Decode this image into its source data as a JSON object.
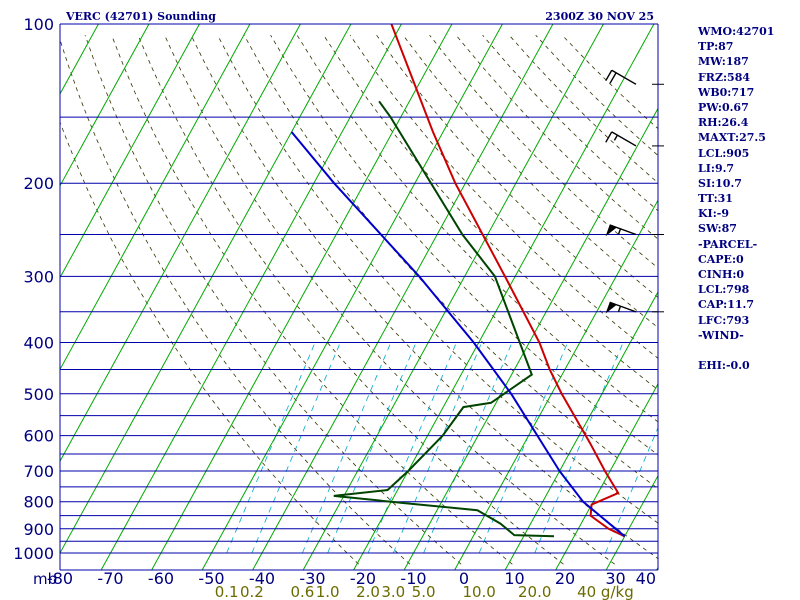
{
  "header": {
    "title": "VERC (42701) Sounding",
    "datetime": "2300Z 30 NOV 25"
  },
  "indices": [
    "WMO:42701",
    "TP:87",
    "MW:187",
    "FRZ:584",
    "WB0:717",
    "PW:0.67",
    "RH:26.4",
    "MAXT:27.5",
    "LCL:905",
    "LI:9.7",
    "SI:10.7",
    "TT:31",
    "KI:-9",
    "SW:87",
    "-PARCEL-",
    "CAPE:0",
    "CINH:0",
    "LCL:798",
    "CAP:11.7",
    "LFC:793",
    "-WIND-",
    "",
    "EHI:-0.0"
  ],
  "colors": {
    "isobar": "#0000aa",
    "isotherm": "#00aa00",
    "dry_adiabat": "#333300",
    "mixing_ratio": "#00aacc",
    "temperature": "#cc0000",
    "dewpoint": "#004400",
    "parcel": "#0000cc",
    "text": "#000080"
  },
  "chart_data": {
    "type": "line",
    "title": "VERC (42701) Sounding",
    "y_scale": "log-pressure",
    "ylim": [
      1000,
      100
    ],
    "xlim": [
      -80,
      40
    ],
    "grid": true,
    "pressure_unit_label": "mb",
    "pressure_ticks": [
      100,
      200,
      300,
      400,
      500,
      600,
      700,
      800,
      900,
      1000
    ],
    "isobar_levels": [
      100,
      150,
      200,
      250,
      300,
      350,
      400,
      450,
      500,
      550,
      600,
      650,
      700,
      750,
      800,
      850,
      900,
      950,
      1000
    ],
    "temperature_ticks": [
      "-80",
      "-70",
      "-60",
      "-50",
      "-40",
      "-30",
      "-20",
      "-10",
      "0",
      "10",
      "20",
      "30",
      "40"
    ],
    "mixing_ratio_ticks": [
      {
        "label": "0.1",
        "t": -47
      },
      {
        "label": "0.2",
        "t": -42
      },
      {
        "label": "0.6",
        "t": -32
      },
      {
        "label": "1.0",
        "t": -27
      },
      {
        "label": "2.0",
        "t": -19
      },
      {
        "label": "3.0",
        "t": -14
      },
      {
        "label": "5.0",
        "t": -8
      },
      {
        "label": "10.0",
        "t": 3
      },
      {
        "label": "20.0",
        "t": 14
      },
      {
        "label": "40 g/kg",
        "t": 28
      }
    ],
    "series": [
      {
        "kind": "temperature",
        "points": [
          {
            "p": 930,
            "t": 30
          },
          {
            "p": 900,
            "t": 26
          },
          {
            "p": 850,
            "t": 21
          },
          {
            "p": 810,
            "t": 20
          },
          {
            "p": 770,
            "t": 24
          },
          {
            "p": 700,
            "t": 19
          },
          {
            "p": 620,
            "t": 13
          },
          {
            "p": 500,
            "t": 2
          },
          {
            "p": 450,
            "t": -3
          },
          {
            "p": 400,
            "t": -8
          },
          {
            "p": 300,
            "t": -22
          },
          {
            "p": 200,
            "t": -42
          },
          {
            "p": 160,
            "t": -52
          },
          {
            "p": 100,
            "t": -72
          }
        ]
      },
      {
        "kind": "dewpoint",
        "points": [
          {
            "p": 930,
            "t": 16
          },
          {
            "p": 925,
            "t": 8
          },
          {
            "p": 880,
            "t": 4
          },
          {
            "p": 830,
            "t": -2
          },
          {
            "p": 805,
            "t": -17
          },
          {
            "p": 780,
            "t": -32
          },
          {
            "p": 760,
            "t": -22
          },
          {
            "p": 700,
            "t": -20
          },
          {
            "p": 600,
            "t": -17
          },
          {
            "p": 530,
            "t": -16
          },
          {
            "p": 520,
            "t": -11
          },
          {
            "p": 460,
            "t": -6
          },
          {
            "p": 300,
            "t": -24
          },
          {
            "p": 250,
            "t": -35
          },
          {
            "p": 150,
            "t": -62
          },
          {
            "p": 140,
            "t": -66
          }
        ]
      },
      {
        "kind": "parcel",
        "points": [
          {
            "p": 930,
            "t": 30
          },
          {
            "p": 800,
            "t": 18
          },
          {
            "p": 700,
            "t": 10
          },
          {
            "p": 500,
            "t": -8
          },
          {
            "p": 400,
            "t": -21
          },
          {
            "p": 300,
            "t": -39
          },
          {
            "p": 200,
            "t": -66
          },
          {
            "p": 160,
            "t": -80
          }
        ]
      }
    ],
    "wind_barbs": [
      {
        "p": 130,
        "dir": 300,
        "speed_kt": 20
      },
      {
        "p": 170,
        "dir": 300,
        "speed_kt": 15
      },
      {
        "p": 250,
        "dir": 290,
        "speed_kt": 55
      },
      {
        "p": 350,
        "dir": 290,
        "speed_kt": 55
      }
    ]
  }
}
